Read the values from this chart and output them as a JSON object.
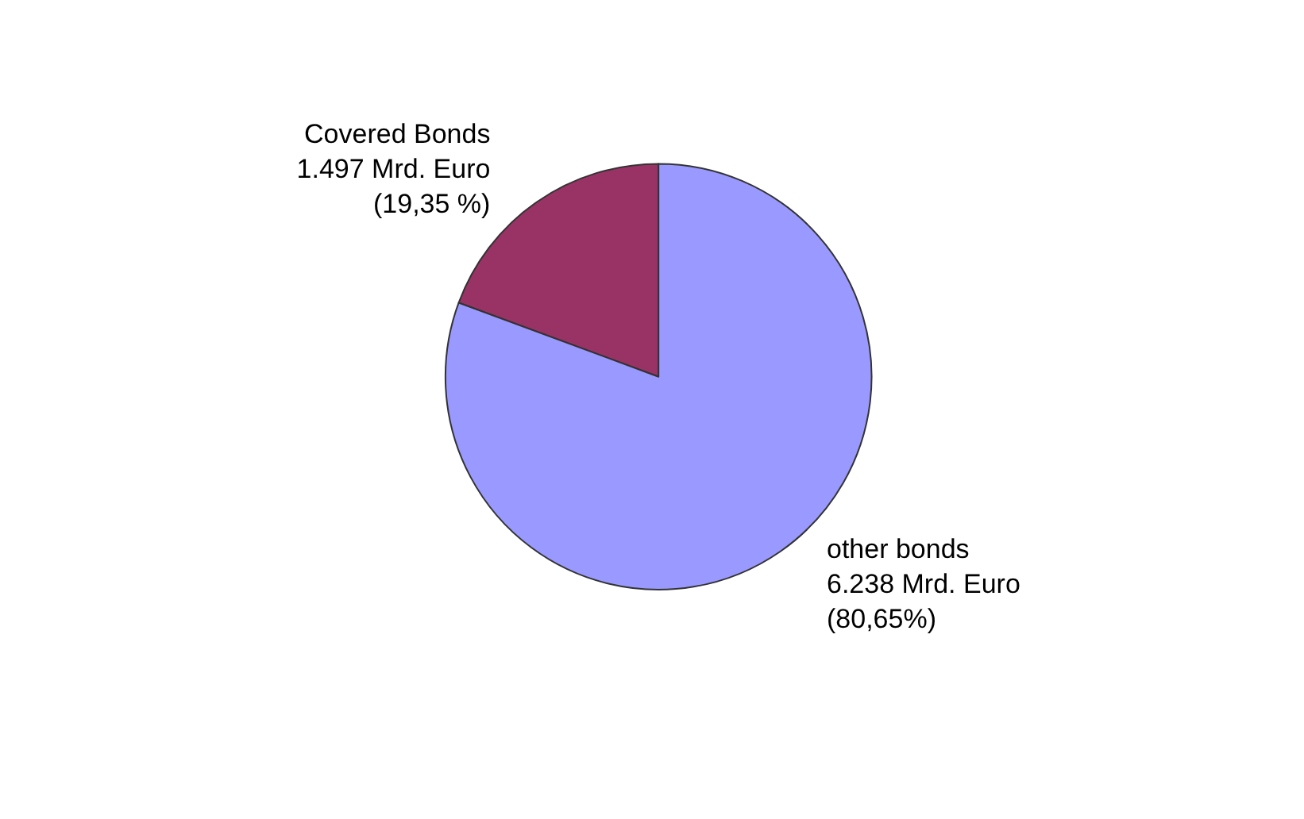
{
  "chart_data": {
    "type": "pie",
    "categories": [
      "Covered Bonds",
      "other bonds"
    ],
    "values": [
      19.35,
      80.65
    ],
    "colors": [
      "#993366",
      "#9999ff"
    ],
    "value_labels": [
      "1.497 Mrd. Euro\n(19,35 %)",
      "6.238 Mrd. Euro\n(80,65%)"
    ],
    "legend": false
  }
}
